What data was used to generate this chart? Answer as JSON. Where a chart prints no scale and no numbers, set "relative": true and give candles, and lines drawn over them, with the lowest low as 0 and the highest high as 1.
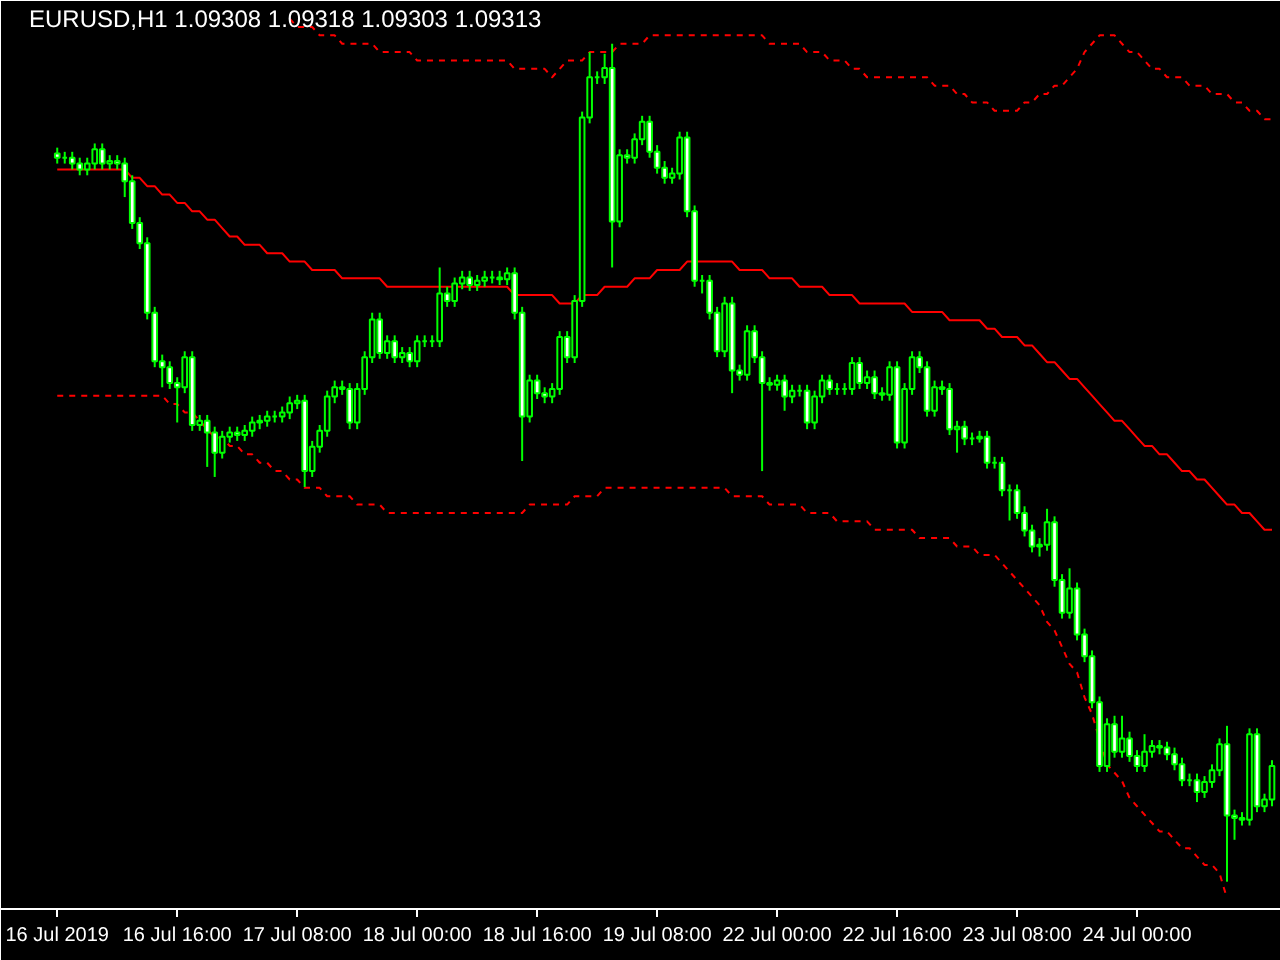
{
  "chart_data": {
    "type": "candlestick",
    "title": "EURUSD,H1  1.09308 1.09318 1.09303 1.09313",
    "relative": true,
    "tick_labels": "x",
    "color": "#00ff00",
    "categories": [
      "16 Jul 2019",
      null,
      null,
      null,
      null,
      null,
      null,
      null,
      null,
      null,
      null,
      null,
      null,
      null,
      null,
      null,
      "16 Jul 16:00",
      null,
      null,
      null,
      null,
      null,
      null,
      null,
      null,
      null,
      null,
      null,
      null,
      null,
      null,
      null,
      "17 Jul 08:00",
      null,
      null,
      null,
      null,
      null,
      null,
      null,
      null,
      null,
      null,
      null,
      null,
      null,
      null,
      null,
      "18 Jul 00:00",
      null,
      null,
      null,
      null,
      null,
      null,
      null,
      null,
      null,
      null,
      null,
      null,
      null,
      null,
      null,
      "18 Jul 16:00",
      null,
      null,
      null,
      null,
      null,
      null,
      null,
      null,
      null,
      null,
      null,
      null,
      null,
      null,
      null,
      "19 Jul 08:00",
      null,
      null,
      null,
      null,
      null,
      null,
      null,
      null,
      null,
      null,
      null,
      null,
      null,
      null,
      null,
      "22 Jul 00:00",
      null,
      null,
      null,
      null,
      null,
      null,
      null,
      null,
      null,
      null,
      null,
      null,
      null,
      null,
      null,
      "22 Jul 16:00",
      null,
      null,
      null,
      null,
      null,
      null,
      null,
      null,
      null,
      null,
      null,
      null,
      null,
      null,
      null,
      "23 Jul 08:00",
      null,
      null,
      null,
      null,
      null,
      null,
      null,
      null,
      null,
      null,
      null,
      null,
      null,
      null,
      null,
      "24 Jul 00:00",
      null,
      null,
      null,
      null,
      null,
      null,
      null,
      null,
      null,
      null,
      null,
      null,
      null,
      null,
      null,
      null,
      null,
      null
    ],
    "ohlc": [
      [
        0.869,
        0.876,
        0.857,
        0.864
      ],
      [
        0.864,
        0.871,
        0.857,
        0.864
      ],
      [
        0.864,
        0.871,
        0.85,
        0.857
      ],
      [
        0.857,
        0.864,
        0.843,
        0.85
      ],
      [
        0.85,
        0.864,
        0.843,
        0.857
      ],
      [
        0.857,
        0.881,
        0.85,
        0.874
      ],
      [
        0.874,
        0.881,
        0.85,
        0.857
      ],
      [
        0.857,
        0.867,
        0.85,
        0.86
      ],
      [
        0.86,
        0.867,
        0.85,
        0.857
      ],
      [
        0.857,
        0.864,
        0.817,
        0.836
      ],
      [
        0.836,
        0.843,
        0.779,
        0.786
      ],
      [
        0.786,
        0.793,
        0.755,
        0.762
      ],
      [
        0.762,
        0.769,
        0.671,
        0.679
      ],
      [
        0.679,
        0.686,
        0.614,
        0.621
      ],
      [
        0.621,
        0.629,
        0.59,
        0.614
      ],
      [
        0.614,
        0.621,
        0.588,
        0.595
      ],
      [
        0.595,
        0.602,
        0.548,
        0.59
      ],
      [
        0.59,
        0.633,
        0.583,
        0.626
      ],
      [
        0.626,
        0.633,
        0.538,
        0.545
      ],
      [
        0.545,
        0.557,
        0.538,
        0.55
      ],
      [
        0.55,
        0.557,
        0.495,
        0.536
      ],
      [
        0.536,
        0.543,
        0.483,
        0.512
      ],
      [
        0.512,
        0.538,
        0.505,
        0.531
      ],
      [
        0.531,
        0.543,
        0.524,
        0.536
      ],
      [
        0.536,
        0.543,
        0.526,
        0.533
      ],
      [
        0.533,
        0.545,
        0.526,
        0.538
      ],
      [
        0.538,
        0.555,
        0.531,
        0.548
      ],
      [
        0.548,
        0.557,
        0.54,
        0.55
      ],
      [
        0.55,
        0.562,
        0.543,
        0.555
      ],
      [
        0.555,
        0.562,
        0.548,
        0.555
      ],
      [
        0.555,
        0.567,
        0.548,
        0.56
      ],
      [
        0.56,
        0.579,
        0.552,
        0.571
      ],
      [
        0.571,
        0.581,
        0.564,
        0.574
      ],
      [
        0.574,
        0.581,
        0.471,
        0.49
      ],
      [
        0.49,
        0.526,
        0.483,
        0.519
      ],
      [
        0.519,
        0.545,
        0.512,
        0.538
      ],
      [
        0.538,
        0.586,
        0.531,
        0.579
      ],
      [
        0.579,
        0.598,
        0.571,
        0.59
      ],
      [
        0.59,
        0.598,
        0.581,
        0.588
      ],
      [
        0.588,
        0.595,
        0.54,
        0.548
      ],
      [
        0.548,
        0.595,
        0.54,
        0.588
      ],
      [
        0.588,
        0.633,
        0.581,
        0.626
      ],
      [
        0.626,
        0.679,
        0.619,
        0.671
      ],
      [
        0.671,
        0.679,
        0.624,
        0.631
      ],
      [
        0.631,
        0.652,
        0.624,
        0.645
      ],
      [
        0.645,
        0.652,
        0.619,
        0.626
      ],
      [
        0.626,
        0.638,
        0.619,
        0.631
      ],
      [
        0.631,
        0.638,
        0.614,
        0.621
      ],
      [
        0.621,
        0.652,
        0.614,
        0.645
      ],
      [
        0.645,
        0.652,
        0.638,
        0.645
      ],
      [
        0.645,
        0.652,
        0.638,
        0.645
      ],
      [
        0.645,
        0.733,
        0.638,
        0.702
      ],
      [
        0.702,
        0.71,
        0.686,
        0.693
      ],
      [
        0.693,
        0.721,
        0.686,
        0.714
      ],
      [
        0.714,
        0.729,
        0.707,
        0.721
      ],
      [
        0.721,
        0.729,
        0.705,
        0.712
      ],
      [
        0.712,
        0.724,
        0.705,
        0.717
      ],
      [
        0.717,
        0.729,
        0.71,
        0.721
      ],
      [
        0.721,
        0.729,
        0.714,
        0.721
      ],
      [
        0.721,
        0.729,
        0.712,
        0.719
      ],
      [
        0.719,
        0.733,
        0.712,
        0.726
      ],
      [
        0.726,
        0.733,
        0.671,
        0.679
      ],
      [
        0.679,
        0.686,
        0.502,
        0.555
      ],
      [
        0.555,
        0.605,
        0.548,
        0.598
      ],
      [
        0.598,
        0.605,
        0.576,
        0.583
      ],
      [
        0.583,
        0.59,
        0.571,
        0.579
      ],
      [
        0.579,
        0.595,
        0.571,
        0.588
      ],
      [
        0.588,
        0.657,
        0.581,
        0.65
      ],
      [
        0.65,
        0.657,
        0.619,
        0.626
      ],
      [
        0.626,
        0.7,
        0.619,
        0.693
      ],
      [
        0.693,
        0.919,
        0.686,
        0.912
      ],
      [
        0.912,
        0.99,
        0.905,
        0.96
      ],
      [
        0.96,
        0.967,
        0.952,
        0.96
      ],
      [
        0.96,
        0.988,
        0.952,
        0.971
      ],
      [
        0.971,
        1,
        0.733,
        0.788
      ],
      [
        0.788,
        0.874,
        0.781,
        0.867
      ],
      [
        0.867,
        0.874,
        0.857,
        0.864
      ],
      [
        0.864,
        0.893,
        0.857,
        0.886
      ],
      [
        0.886,
        0.914,
        0.879,
        0.907
      ],
      [
        0.907,
        0.914,
        0.864,
        0.871
      ],
      [
        0.871,
        0.879,
        0.845,
        0.852
      ],
      [
        0.852,
        0.86,
        0.833,
        0.84
      ],
      [
        0.84,
        0.852,
        0.833,
        0.845
      ],
      [
        0.845,
        0.895,
        0.838,
        0.888
      ],
      [
        0.888,
        0.895,
        0.793,
        0.8
      ],
      [
        0.8,
        0.807,
        0.71,
        0.717
      ],
      [
        0.717,
        0.724,
        0.702,
        0.717
      ],
      [
        0.717,
        0.724,
        0.671,
        0.679
      ],
      [
        0.679,
        0.686,
        0.626,
        0.633
      ],
      [
        0.633,
        0.698,
        0.626,
        0.69
      ],
      [
        0.69,
        0.698,
        0.583,
        0.61
      ],
      [
        0.61,
        0.617,
        0.598,
        0.605
      ],
      [
        0.605,
        0.664,
        0.598,
        0.657
      ],
      [
        0.657,
        0.664,
        0.619,
        0.626
      ],
      [
        0.626,
        0.633,
        0.49,
        0.595
      ],
      [
        0.595,
        0.602,
        0.586,
        0.593
      ],
      [
        0.593,
        0.605,
        0.586,
        0.598
      ],
      [
        0.598,
        0.605,
        0.562,
        0.579
      ],
      [
        0.579,
        0.593,
        0.571,
        0.586
      ],
      [
        0.586,
        0.593,
        0.579,
        0.586
      ],
      [
        0.586,
        0.593,
        0.54,
        0.548
      ],
      [
        0.548,
        0.586,
        0.54,
        0.579
      ],
      [
        0.579,
        0.605,
        0.571,
        0.598
      ],
      [
        0.598,
        0.605,
        0.581,
        0.588
      ],
      [
        0.588,
        0.595,
        0.581,
        0.588
      ],
      [
        0.588,
        0.595,
        0.581,
        0.588
      ],
      [
        0.588,
        0.626,
        0.581,
        0.619
      ],
      [
        0.619,
        0.626,
        0.588,
        0.595
      ],
      [
        0.595,
        0.61,
        0.588,
        0.602
      ],
      [
        0.602,
        0.61,
        0.576,
        0.583
      ],
      [
        0.583,
        0.59,
        0.574,
        0.581
      ],
      [
        0.581,
        0.621,
        0.574,
        0.614
      ],
      [
        0.614,
        0.621,
        0.517,
        0.524
      ],
      [
        0.524,
        0.595,
        0.517,
        0.588
      ],
      [
        0.588,
        0.633,
        0.581,
        0.626
      ],
      [
        0.626,
        0.633,
        0.607,
        0.614
      ],
      [
        0.614,
        0.621,
        0.555,
        0.562
      ],
      [
        0.562,
        0.598,
        0.555,
        0.59
      ],
      [
        0.59,
        0.598,
        0.581,
        0.588
      ],
      [
        0.588,
        0.595,
        0.533,
        0.54
      ],
      [
        0.54,
        0.55,
        0.512,
        0.543
      ],
      [
        0.543,
        0.55,
        0.521,
        0.529
      ],
      [
        0.529,
        0.536,
        0.521,
        0.529
      ],
      [
        0.529,
        0.538,
        0.524,
        0.531
      ],
      [
        0.531,
        0.538,
        0.493,
        0.5
      ],
      [
        0.5,
        0.507,
        0.493,
        0.5
      ],
      [
        0.5,
        0.507,
        0.46,
        0.467
      ],
      [
        0.467,
        0.474,
        0.431,
        0.467
      ],
      [
        0.467,
        0.474,
        0.433,
        0.44
      ],
      [
        0.44,
        0.448,
        0.412,
        0.419
      ],
      [
        0.419,
        0.426,
        0.393,
        0.4
      ],
      [
        0.4,
        0.41,
        0.388,
        0.402
      ],
      [
        0.402,
        0.445,
        0.395,
        0.429
      ],
      [
        0.429,
        0.436,
        0.352,
        0.36
      ],
      [
        0.36,
        0.367,
        0.314,
        0.321
      ],
      [
        0.321,
        0.374,
        0.314,
        0.35
      ],
      [
        0.35,
        0.357,
        0.288,
        0.295
      ],
      [
        0.295,
        0.302,
        0.262,
        0.269
      ],
      [
        0.269,
        0.276,
        0.207,
        0.214
      ],
      [
        0.214,
        0.221,
        0.131,
        0.138
      ],
      [
        0.138,
        0.195,
        0.131,
        0.188
      ],
      [
        0.188,
        0.198,
        0.148,
        0.155
      ],
      [
        0.155,
        0.198,
        0.148,
        0.171
      ],
      [
        0.171,
        0.179,
        0.143,
        0.15
      ],
      [
        0.15,
        0.157,
        0.131,
        0.138
      ],
      [
        0.138,
        0.176,
        0.131,
        0.155
      ],
      [
        0.155,
        0.169,
        0.148,
        0.162
      ],
      [
        0.162,
        0.169,
        0.152,
        0.16
      ],
      [
        0.16,
        0.167,
        0.145,
        0.152
      ],
      [
        0.152,
        0.16,
        0.133,
        0.14
      ],
      [
        0.14,
        0.148,
        0.114,
        0.121
      ],
      [
        0.121,
        0.129,
        0.114,
        0.121
      ],
      [
        0.121,
        0.129,
        0.095,
        0.107
      ],
      [
        0.107,
        0.126,
        0.1,
        0.119
      ],
      [
        0.119,
        0.14,
        0.112,
        0.133
      ],
      [
        0.133,
        0.171,
        0.126,
        0.164
      ],
      [
        0.164,
        0.186,
        0,
        0.079
      ],
      [
        0.079,
        0.086,
        0.05,
        0.076
      ],
      [
        0.076,
        0.083,
        0.067,
        0.074
      ],
      [
        0.074,
        0.183,
        0.067,
        0.176
      ],
      [
        0.176,
        0.183,
        0.083,
        0.09
      ],
      [
        0.09,
        0.105,
        0.083,
        0.098
      ],
      [
        0.098,
        0.145,
        0.09,
        0.138
      ]
    ],
    "series": [
      {
        "type": "line",
        "color": "#ff0000",
        "line_style": "dashed",
        "values": [
          null,
          null,
          null,
          null,
          null,
          null,
          null,
          null,
          null,
          null,
          null,
          null,
          null,
          null,
          null,
          null,
          null,
          null,
          null,
          null,
          null,
          null,
          null,
          null,
          null,
          null,
          null,
          null,
          null,
          null,
          null,
          1.03,
          1.02,
          1.02,
          1.02,
          1.01,
          1.01,
          1.01,
          1.0,
          1.0,
          1.0,
          1.0,
          1.0,
          0.99,
          0.99,
          0.99,
          0.99,
          0.99,
          0.98,
          0.98,
          0.98,
          0.98,
          0.98,
          0.98,
          0.98,
          0.98,
          0.98,
          0.98,
          0.98,
          0.98,
          0.98,
          0.97,
          0.97,
          0.97,
          0.97,
          0.97,
          0.96,
          0.97,
          0.98,
          0.98,
          0.98,
          0.99,
          0.99,
          0.99,
          0.99,
          1.0,
          1.0,
          1.0,
          1.0,
          1.01,
          1.01,
          1.01,
          1.01,
          1.01,
          1.01,
          1.01,
          1.01,
          1.01,
          1.01,
          1.01,
          1.01,
          1.01,
          1.01,
          1.01,
          1.01,
          1.0,
          1.0,
          1.0,
          1.0,
          1.0,
          0.99,
          0.99,
          0.99,
          0.98,
          0.98,
          0.98,
          0.97,
          0.97,
          0.96,
          0.96,
          0.96,
          0.96,
          0.96,
          0.96,
          0.96,
          0.96,
          0.96,
          0.95,
          0.95,
          0.95,
          0.94,
          0.94,
          0.93,
          0.93,
          0.93,
          0.92,
          0.92,
          0.92,
          0.92,
          0.93,
          0.93,
          0.94,
          0.94,
          0.95,
          0.95,
          0.96,
          0.97,
          0.99,
          1.0,
          1.01,
          1.01,
          1.01,
          1.0,
          0.99,
          0.99,
          0.98,
          0.97,
          0.97,
          0.96,
          0.96,
          0.96,
          0.95,
          0.95,
          0.95,
          0.94,
          0.94,
          0.94,
          0.93,
          0.93,
          0.92,
          0.92,
          0.91,
          0.91
        ]
      },
      {
        "type": "line",
        "color": "#ff0000",
        "line_style": "solid",
        "values": [
          0.85,
          0.85,
          0.85,
          0.85,
          0.85,
          0.85,
          0.85,
          0.85,
          0.85,
          0.85,
          0.84,
          0.84,
          0.83,
          0.83,
          0.82,
          0.82,
          0.81,
          0.81,
          0.8,
          0.8,
          0.79,
          0.79,
          0.78,
          0.77,
          0.77,
          0.76,
          0.76,
          0.76,
          0.75,
          0.75,
          0.75,
          0.74,
          0.74,
          0.74,
          0.73,
          0.73,
          0.73,
          0.73,
          0.72,
          0.72,
          0.72,
          0.72,
          0.72,
          0.72,
          0.71,
          0.71,
          0.71,
          0.71,
          0.71,
          0.71,
          0.71,
          0.71,
          0.71,
          0.71,
          0.71,
          0.71,
          0.71,
          0.71,
          0.71,
          0.71,
          0.71,
          0.7,
          0.7,
          0.7,
          0.7,
          0.7,
          0.7,
          0.69,
          0.69,
          0.69,
          0.7,
          0.7,
          0.7,
          0.71,
          0.71,
          0.71,
          0.71,
          0.72,
          0.72,
          0.72,
          0.73,
          0.73,
          0.73,
          0.73,
          0.74,
          0.74,
          0.74,
          0.74,
          0.74,
          0.74,
          0.74,
          0.73,
          0.73,
          0.73,
          0.73,
          0.72,
          0.72,
          0.72,
          0.72,
          0.71,
          0.71,
          0.71,
          0.71,
          0.7,
          0.7,
          0.7,
          0.7,
          0.69,
          0.69,
          0.69,
          0.69,
          0.69,
          0.69,
          0.69,
          0.68,
          0.68,
          0.68,
          0.68,
          0.68,
          0.67,
          0.67,
          0.67,
          0.67,
          0.67,
          0.66,
          0.66,
          0.65,
          0.65,
          0.65,
          0.64,
          0.64,
          0.63,
          0.62,
          0.62,
          0.61,
          0.6,
          0.6,
          0.59,
          0.58,
          0.57,
          0.56,
          0.55,
          0.55,
          0.54,
          0.53,
          0.52,
          0.52,
          0.51,
          0.51,
          0.5,
          0.49,
          0.49,
          0.48,
          0.48,
          0.47,
          0.46,
          0.45,
          0.45,
          0.44,
          0.44,
          0.43,
          0.42,
          0.42
        ]
      },
      {
        "type": "line",
        "color": "#ff0000",
        "line_style": "dashed",
        "values": [
          0.58,
          0.58,
          0.58,
          0.58,
          0.58,
          0.58,
          0.58,
          0.58,
          0.58,
          0.58,
          0.58,
          0.58,
          0.58,
          0.58,
          0.58,
          0.57,
          0.57,
          0.56,
          0.56,
          0.55,
          0.54,
          0.53,
          0.53,
          0.52,
          0.52,
          0.51,
          0.51,
          0.5,
          0.5,
          0.49,
          0.49,
          0.48,
          0.48,
          0.47,
          0.47,
          0.47,
          0.46,
          0.46,
          0.46,
          0.46,
          0.45,
          0.45,
          0.45,
          0.45,
          0.44,
          0.44,
          0.44,
          0.44,
          0.44,
          0.44,
          0.44,
          0.44,
          0.44,
          0.44,
          0.44,
          0.44,
          0.44,
          0.44,
          0.44,
          0.44,
          0.44,
          0.44,
          0.44,
          0.45,
          0.45,
          0.45,
          0.45,
          0.45,
          0.45,
          0.46,
          0.46,
          0.46,
          0.46,
          0.47,
          0.47,
          0.47,
          0.47,
          0.47,
          0.47,
          0.47,
          0.47,
          0.47,
          0.47,
          0.47,
          0.47,
          0.47,
          0.47,
          0.47,
          0.47,
          0.47,
          0.46,
          0.46,
          0.46,
          0.46,
          0.46,
          0.45,
          0.45,
          0.45,
          0.45,
          0.45,
          0.44,
          0.44,
          0.44,
          0.44,
          0.43,
          0.43,
          0.43,
          0.43,
          0.43,
          0.42,
          0.42,
          0.42,
          0.42,
          0.42,
          0.42,
          0.41,
          0.41,
          0.41,
          0.41,
          0.41,
          0.4,
          0.4,
          0.4,
          0.39,
          0.39,
          0.39,
          0.38,
          0.37,
          0.36,
          0.35,
          0.34,
          0.33,
          0.31,
          0.3,
          0.28,
          0.26,
          0.25,
          0.22,
          0.2,
          0.17,
          0.14,
          0.13,
          0.12,
          0.1,
          0.09,
          0.08,
          0.07,
          0.06,
          0.06,
          0.05,
          0.04,
          0.04,
          0.03,
          0.02,
          0.02,
          0.01,
          -0.02,
          null,
          null,
          null,
          null,
          null,
          null
        ]
      }
    ]
  }
}
